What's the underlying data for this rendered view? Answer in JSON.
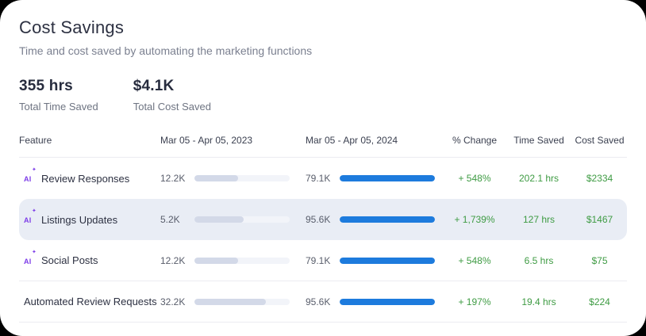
{
  "page": {
    "title": "Cost Savings",
    "subtitle": "Time and cost saved by automating the marketing functions"
  },
  "stats": [
    {
      "value": "355 hrs",
      "label": "Total Time Saved"
    },
    {
      "value": "$4.1K",
      "label": "Total Cost Saved"
    }
  ],
  "table": {
    "headers": [
      "Feature",
      "Mar 05 - Apr 05, 2023",
      "Mar 05 - Apr 05, 2024",
      "% Change",
      "Time Saved",
      "Cost Saved"
    ],
    "rows": [
      {
        "feature": "Review Responses",
        "ai_icon": true,
        "value_2023": "12.2K",
        "bar_2023_pct": 46,
        "value_2024": "79.1K",
        "bar_2024_pct": 100,
        "change": "+ 548%",
        "time_saved": "202.1 hrs",
        "cost_saved": "$2334",
        "highlighted": false
      },
      {
        "feature": "Listings Updates",
        "ai_icon": true,
        "value_2023": "5.2K",
        "bar_2023_pct": 52,
        "value_2024": "95.6K",
        "bar_2024_pct": 100,
        "change": "+ 1,739%",
        "time_saved": "127 hrs",
        "cost_saved": "$1467",
        "highlighted": true
      },
      {
        "feature": "Social Posts",
        "ai_icon": true,
        "value_2023": "12.2K",
        "bar_2023_pct": 46,
        "value_2024": "79.1K",
        "bar_2024_pct": 100,
        "change": "+ 548%",
        "time_saved": "6.5 hrs",
        "cost_saved": "$75",
        "highlighted": false
      },
      {
        "feature": "Automated Review Requests",
        "ai_icon": false,
        "value_2023": "32.2K",
        "bar_2023_pct": 75,
        "value_2024": "95.6K",
        "bar_2024_pct": 100,
        "change": "+ 197%",
        "time_saved": "19.4 hrs",
        "cost_saved": "$224",
        "highlighted": false
      }
    ]
  },
  "icons": {
    "ai_label": "AI",
    "ai_sparkle": "✦"
  },
  "colors": {
    "accent_blue": "#1d7bdd",
    "bar_muted_fill": "#d3d9e8",
    "bar_track": "#f2f4f9",
    "positive_green": "#3e9b43",
    "highlight_row_bg": "#e9edf5",
    "ai_purple": "#7d3ce8"
  }
}
